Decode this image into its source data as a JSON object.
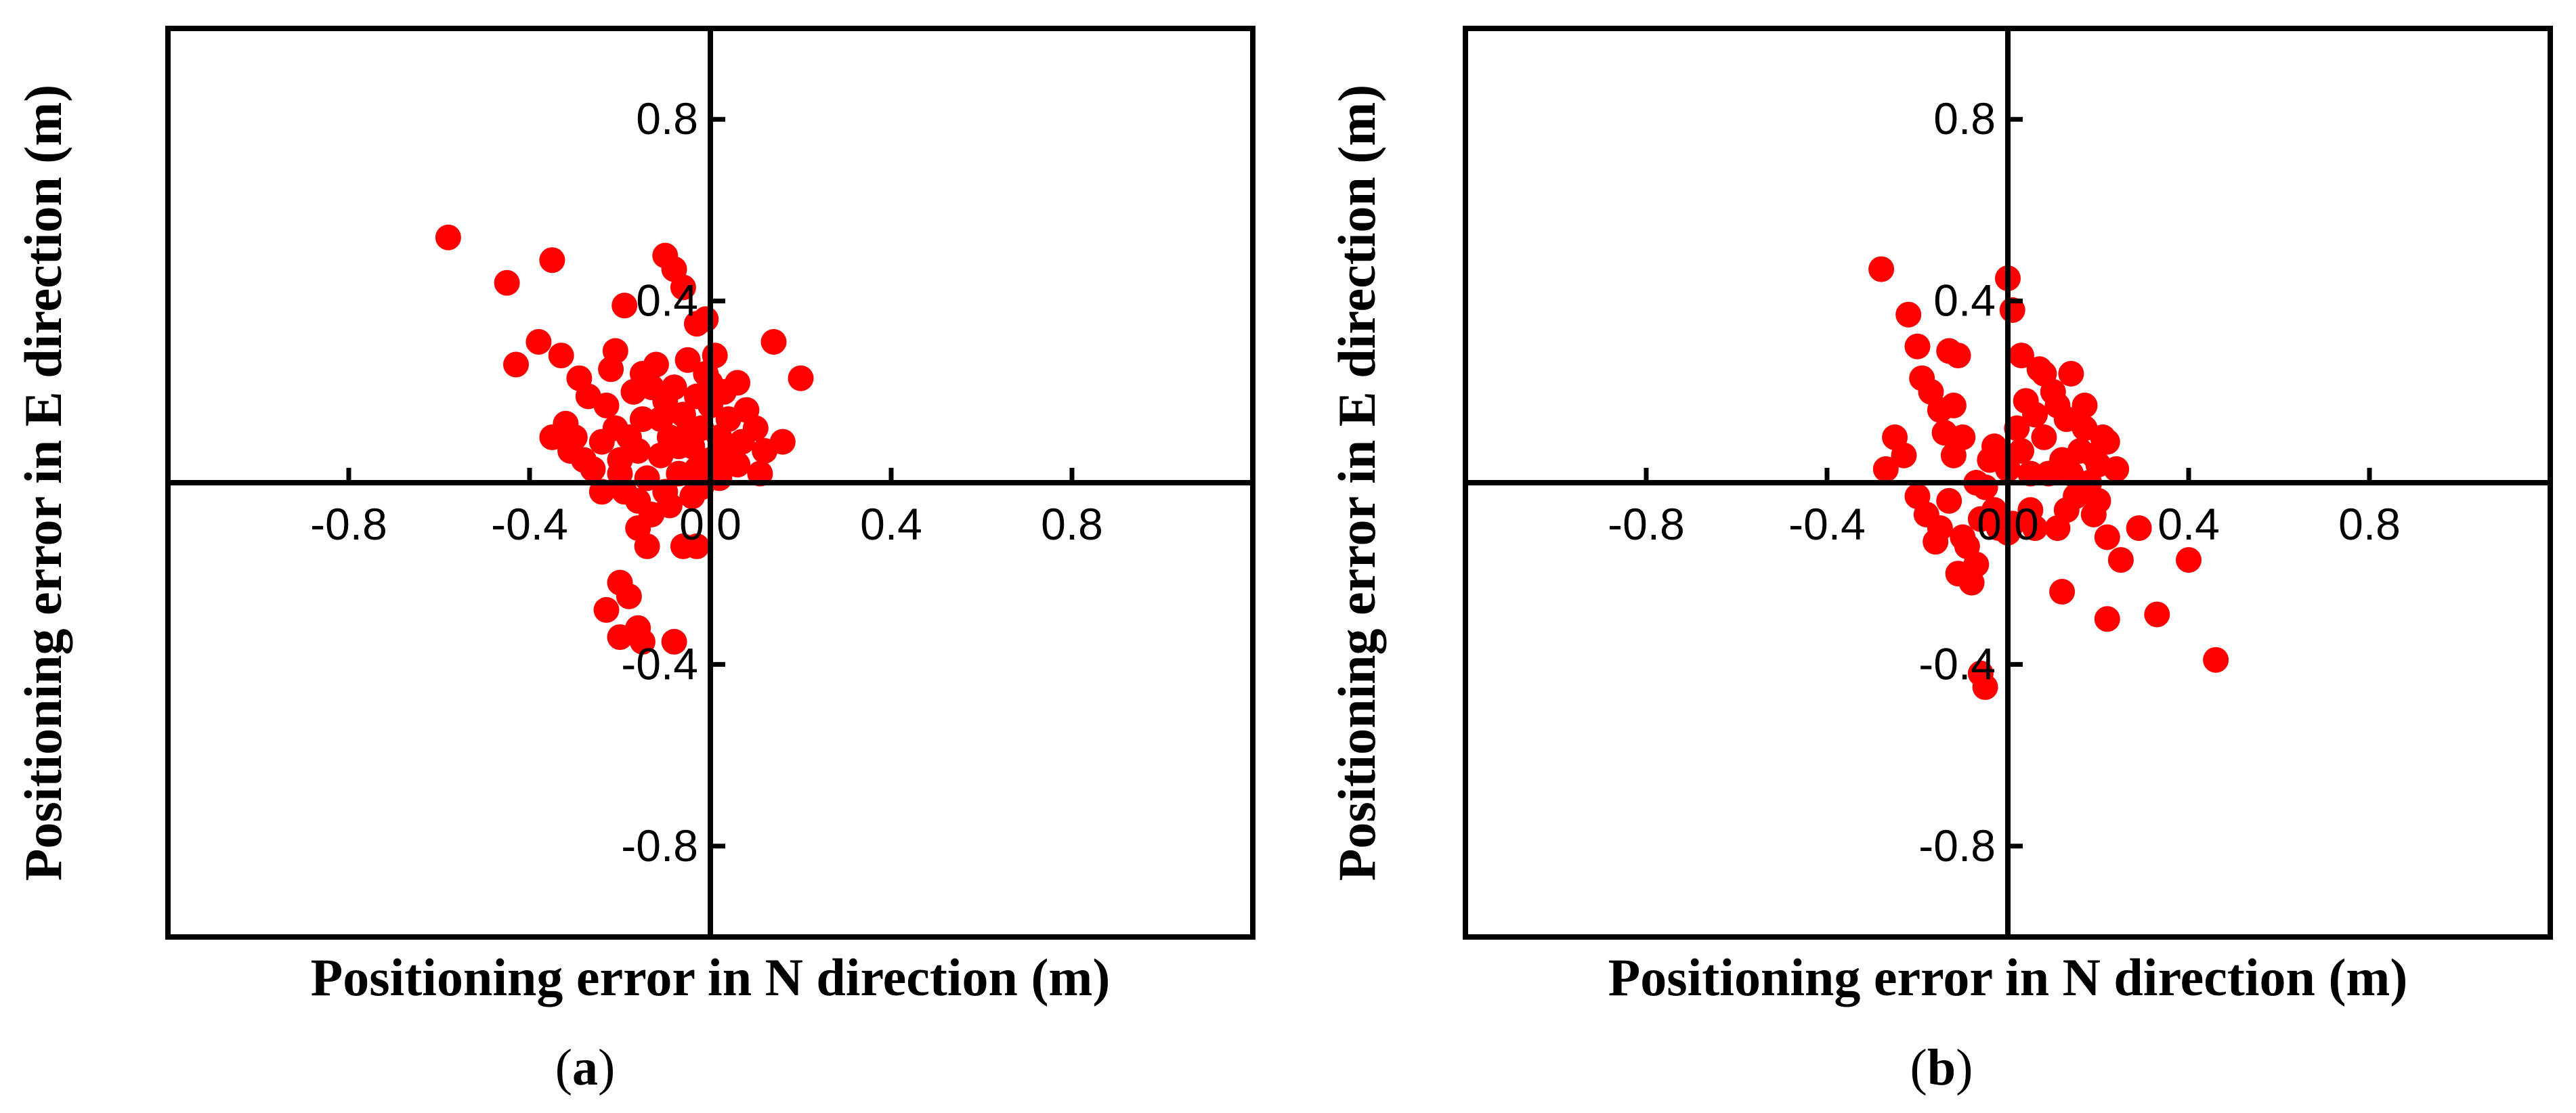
{
  "chart_data": [
    {
      "type": "scatter",
      "panel": "a",
      "caption": "(a)",
      "xlabel": "Positioning error in N direction (m)",
      "ylabel": "Positioning error in E direction (m)",
      "xlim": [
        -1.2,
        1.2
      ],
      "ylim": [
        -1.0,
        1.0
      ],
      "xticks": [
        -0.8,
        -0.4,
        0.0,
        0.4,
        0.8
      ],
      "xtick_labels": [
        "-0.8",
        "-0.4",
        "0.0",
        "0.4",
        "0.8"
      ],
      "yticks": [
        -0.8,
        -0.4,
        0.4,
        0.8
      ],
      "ytick_labels": [
        "-0.8",
        "-0.4",
        "0.4",
        "0.8"
      ],
      "marker_color": "#ff0000",
      "points": [
        [
          -0.58,
          0.54
        ],
        [
          -0.45,
          0.44
        ],
        [
          -0.43,
          0.26
        ],
        [
          -0.38,
          0.31
        ],
        [
          -0.35,
          0.49
        ],
        [
          -0.33,
          0.28
        ],
        [
          -0.32,
          0.13
        ],
        [
          -0.3,
          0.1
        ],
        [
          -0.28,
          0.05
        ],
        [
          -0.26,
          0.03
        ],
        [
          -0.24,
          0.09
        ],
        [
          -0.23,
          0.17
        ],
        [
          -0.22,
          0.25
        ],
        [
          -0.21,
          0.12
        ],
        [
          -0.2,
          0.05
        ],
        [
          -0.2,
          0.02
        ],
        [
          -0.19,
          -0.02
        ],
        [
          -0.18,
          0.1
        ],
        [
          -0.17,
          0.2
        ],
        [
          -0.16,
          0.07
        ],
        [
          -0.16,
          -0.04
        ],
        [
          -0.15,
          0.14
        ],
        [
          -0.14,
          0.01
        ],
        [
          -0.13,
          -0.07
        ],
        [
          -0.12,
          0.26
        ],
        [
          -0.11,
          0.06
        ],
        [
          -0.1,
          0.18
        ],
        [
          -0.1,
          -0.02
        ],
        [
          -0.09,
          0.1
        ],
        [
          -0.08,
          0.21
        ],
        [
          -0.07,
          0.02
        ],
        [
          -0.06,
          0.15
        ],
        [
          -0.05,
          0.27
        ],
        [
          -0.04,
          0.08
        ],
        [
          -0.04,
          -0.03
        ],
        [
          -0.03,
          0.19
        ],
        [
          -0.02,
          0.12
        ],
        [
          -0.01,
          0.24
        ],
        [
          0.0,
          0.05
        ],
        [
          0.0,
          0.17
        ],
        [
          0.01,
          0.28
        ],
        [
          0.02,
          0.1
        ],
        [
          0.03,
          0.2
        ],
        [
          0.04,
          0.14
        ],
        [
          0.06,
          0.22
        ],
        [
          0.07,
          0.09
        ],
        [
          0.08,
          0.16
        ],
        [
          0.1,
          0.12
        ],
        [
          0.12,
          0.07
        ],
        [
          0.14,
          0.31
        ],
        [
          0.16,
          0.09
        ],
        [
          0.2,
          0.23
        ],
        [
          0.11,
          0.02
        ],
        [
          0.06,
          0.04
        ],
        [
          -0.27,
          0.19
        ],
        [
          -0.29,
          0.23
        ],
        [
          -0.31,
          0.07
        ],
        [
          -0.24,
          -0.02
        ],
        [
          -0.21,
          0.29
        ],
        [
          -0.15,
          0.24
        ],
        [
          -0.13,
          0.21
        ],
        [
          -0.11,
          0.14
        ],
        [
          -0.09,
          -0.05
        ],
        [
          -0.07,
          0.08
        ],
        [
          -0.05,
          0.11
        ],
        [
          -0.03,
          0.03
        ],
        [
          -0.02,
          -0.01
        ],
        [
          0.0,
          0.22
        ],
        [
          0.02,
          0.01
        ],
        [
          0.04,
          0.06
        ],
        [
          -0.19,
          0.39
        ],
        [
          -0.1,
          0.5
        ],
        [
          -0.08,
          0.47
        ],
        [
          -0.06,
          0.43
        ],
        [
          -0.03,
          0.35
        ],
        [
          -0.01,
          0.36
        ],
        [
          -0.06,
          -0.14
        ],
        [
          -0.03,
          -0.14
        ],
        [
          -0.14,
          -0.14
        ],
        [
          -0.16,
          -0.1
        ],
        [
          -0.2,
          -0.22
        ],
        [
          -0.18,
          -0.25
        ],
        [
          -0.23,
          -0.28
        ],
        [
          -0.2,
          -0.34
        ],
        [
          -0.16,
          -0.32
        ],
        [
          -0.15,
          -0.35
        ],
        [
          -0.08,
          -0.35
        ],
        [
          -0.35,
          0.1
        ]
      ]
    },
    {
      "type": "scatter",
      "panel": "b",
      "caption": "(b)",
      "xlabel": "Positioning error in N direction (m)",
      "ylabel": "Positioning error in E direction (m)",
      "xlim": [
        -1.2,
        1.2
      ],
      "ylim": [
        -1.0,
        1.0
      ],
      "xticks": [
        -0.8,
        -0.4,
        0.0,
        0.4,
        0.8
      ],
      "xtick_labels": [
        "-0.8",
        "-0.4",
        "0.0",
        "0.4",
        "0.8"
      ],
      "yticks": [
        -0.8,
        -0.4,
        0.4,
        0.8
      ],
      "ytick_labels": [
        "-0.8",
        "-0.4",
        "0.4",
        "0.8"
      ],
      "marker_color": "#ff0000",
      "points": [
        [
          -0.28,
          0.47
        ],
        [
          -0.22,
          0.37
        ],
        [
          -0.2,
          0.3
        ],
        [
          -0.19,
          0.23
        ],
        [
          -0.17,
          0.2
        ],
        [
          -0.13,
          0.29
        ],
        [
          -0.12,
          0.17
        ],
        [
          -0.11,
          0.28
        ],
        [
          -0.25,
          0.1
        ],
        [
          -0.27,
          0.03
        ],
        [
          -0.23,
          0.06
        ],
        [
          -0.2,
          -0.03
        ],
        [
          -0.18,
          -0.07
        ],
        [
          -0.15,
          -0.1
        ],
        [
          -0.13,
          -0.04
        ],
        [
          -0.12,
          0.06
        ],
        [
          -0.1,
          0.1
        ],
        [
          -0.09,
          -0.14
        ],
        [
          -0.11,
          -0.2
        ],
        [
          -0.08,
          -0.22
        ],
        [
          -0.07,
          -0.18
        ],
        [
          -0.06,
          -0.08
        ],
        [
          -0.05,
          -0.01
        ],
        [
          -0.04,
          0.05
        ],
        [
          -0.03,
          0.08
        ],
        [
          -0.02,
          -0.1
        ],
        [
          0.0,
          0.03
        ],
        [
          0.01,
          -0.09
        ],
        [
          0.02,
          0.12
        ],
        [
          0.03,
          0.07
        ],
        [
          0.04,
          0.18
        ],
        [
          0.05,
          -0.06
        ],
        [
          0.06,
          0.15
        ],
        [
          0.07,
          0.25
        ],
        [
          0.08,
          0.1
        ],
        [
          0.09,
          0.02
        ],
        [
          0.1,
          0.2
        ],
        [
          0.11,
          -0.1
        ],
        [
          0.12,
          0.05
        ],
        [
          0.13,
          0.14
        ],
        [
          0.14,
          0.24
        ],
        [
          0.15,
          -0.03
        ],
        [
          0.16,
          0.07
        ],
        [
          0.17,
          0.12
        ],
        [
          0.18,
          0.0
        ],
        [
          0.19,
          -0.07
        ],
        [
          0.2,
          0.04
        ],
        [
          0.21,
          0.1
        ],
        [
          0.22,
          -0.12
        ],
        [
          0.24,
          0.03
        ],
        [
          0.22,
          0.09
        ],
        [
          0.0,
          0.45
        ],
        [
          0.01,
          0.38
        ],
        [
          0.03,
          0.28
        ],
        [
          -0.06,
          -0.42
        ],
        [
          -0.05,
          -0.45
        ],
        [
          0.12,
          -0.24
        ],
        [
          0.25,
          -0.17
        ],
        [
          0.29,
          -0.1
        ],
        [
          0.22,
          -0.3
        ],
        [
          0.33,
          -0.29
        ],
        [
          0.4,
          -0.17
        ],
        [
          0.46,
          -0.39
        ],
        [
          -0.15,
          0.16
        ],
        [
          -0.14,
          0.11
        ],
        [
          -0.16,
          -0.13
        ],
        [
          -0.03,
          -0.06
        ],
        [
          0.0,
          -0.11
        ],
        [
          0.05,
          0.02
        ],
        [
          0.08,
          0.24
        ],
        [
          0.11,
          0.17
        ],
        [
          0.13,
          -0.06
        ],
        [
          0.17,
          0.17
        ],
        [
          0.19,
          0.06
        ],
        [
          0.2,
          -0.04
        ],
        [
          0.14,
          0.02
        ],
        [
          0.06,
          -0.1
        ],
        [
          -0.02,
          0.06
        ],
        [
          -0.07,
          0.0
        ],
        [
          -0.1,
          -0.12
        ]
      ]
    }
  ]
}
